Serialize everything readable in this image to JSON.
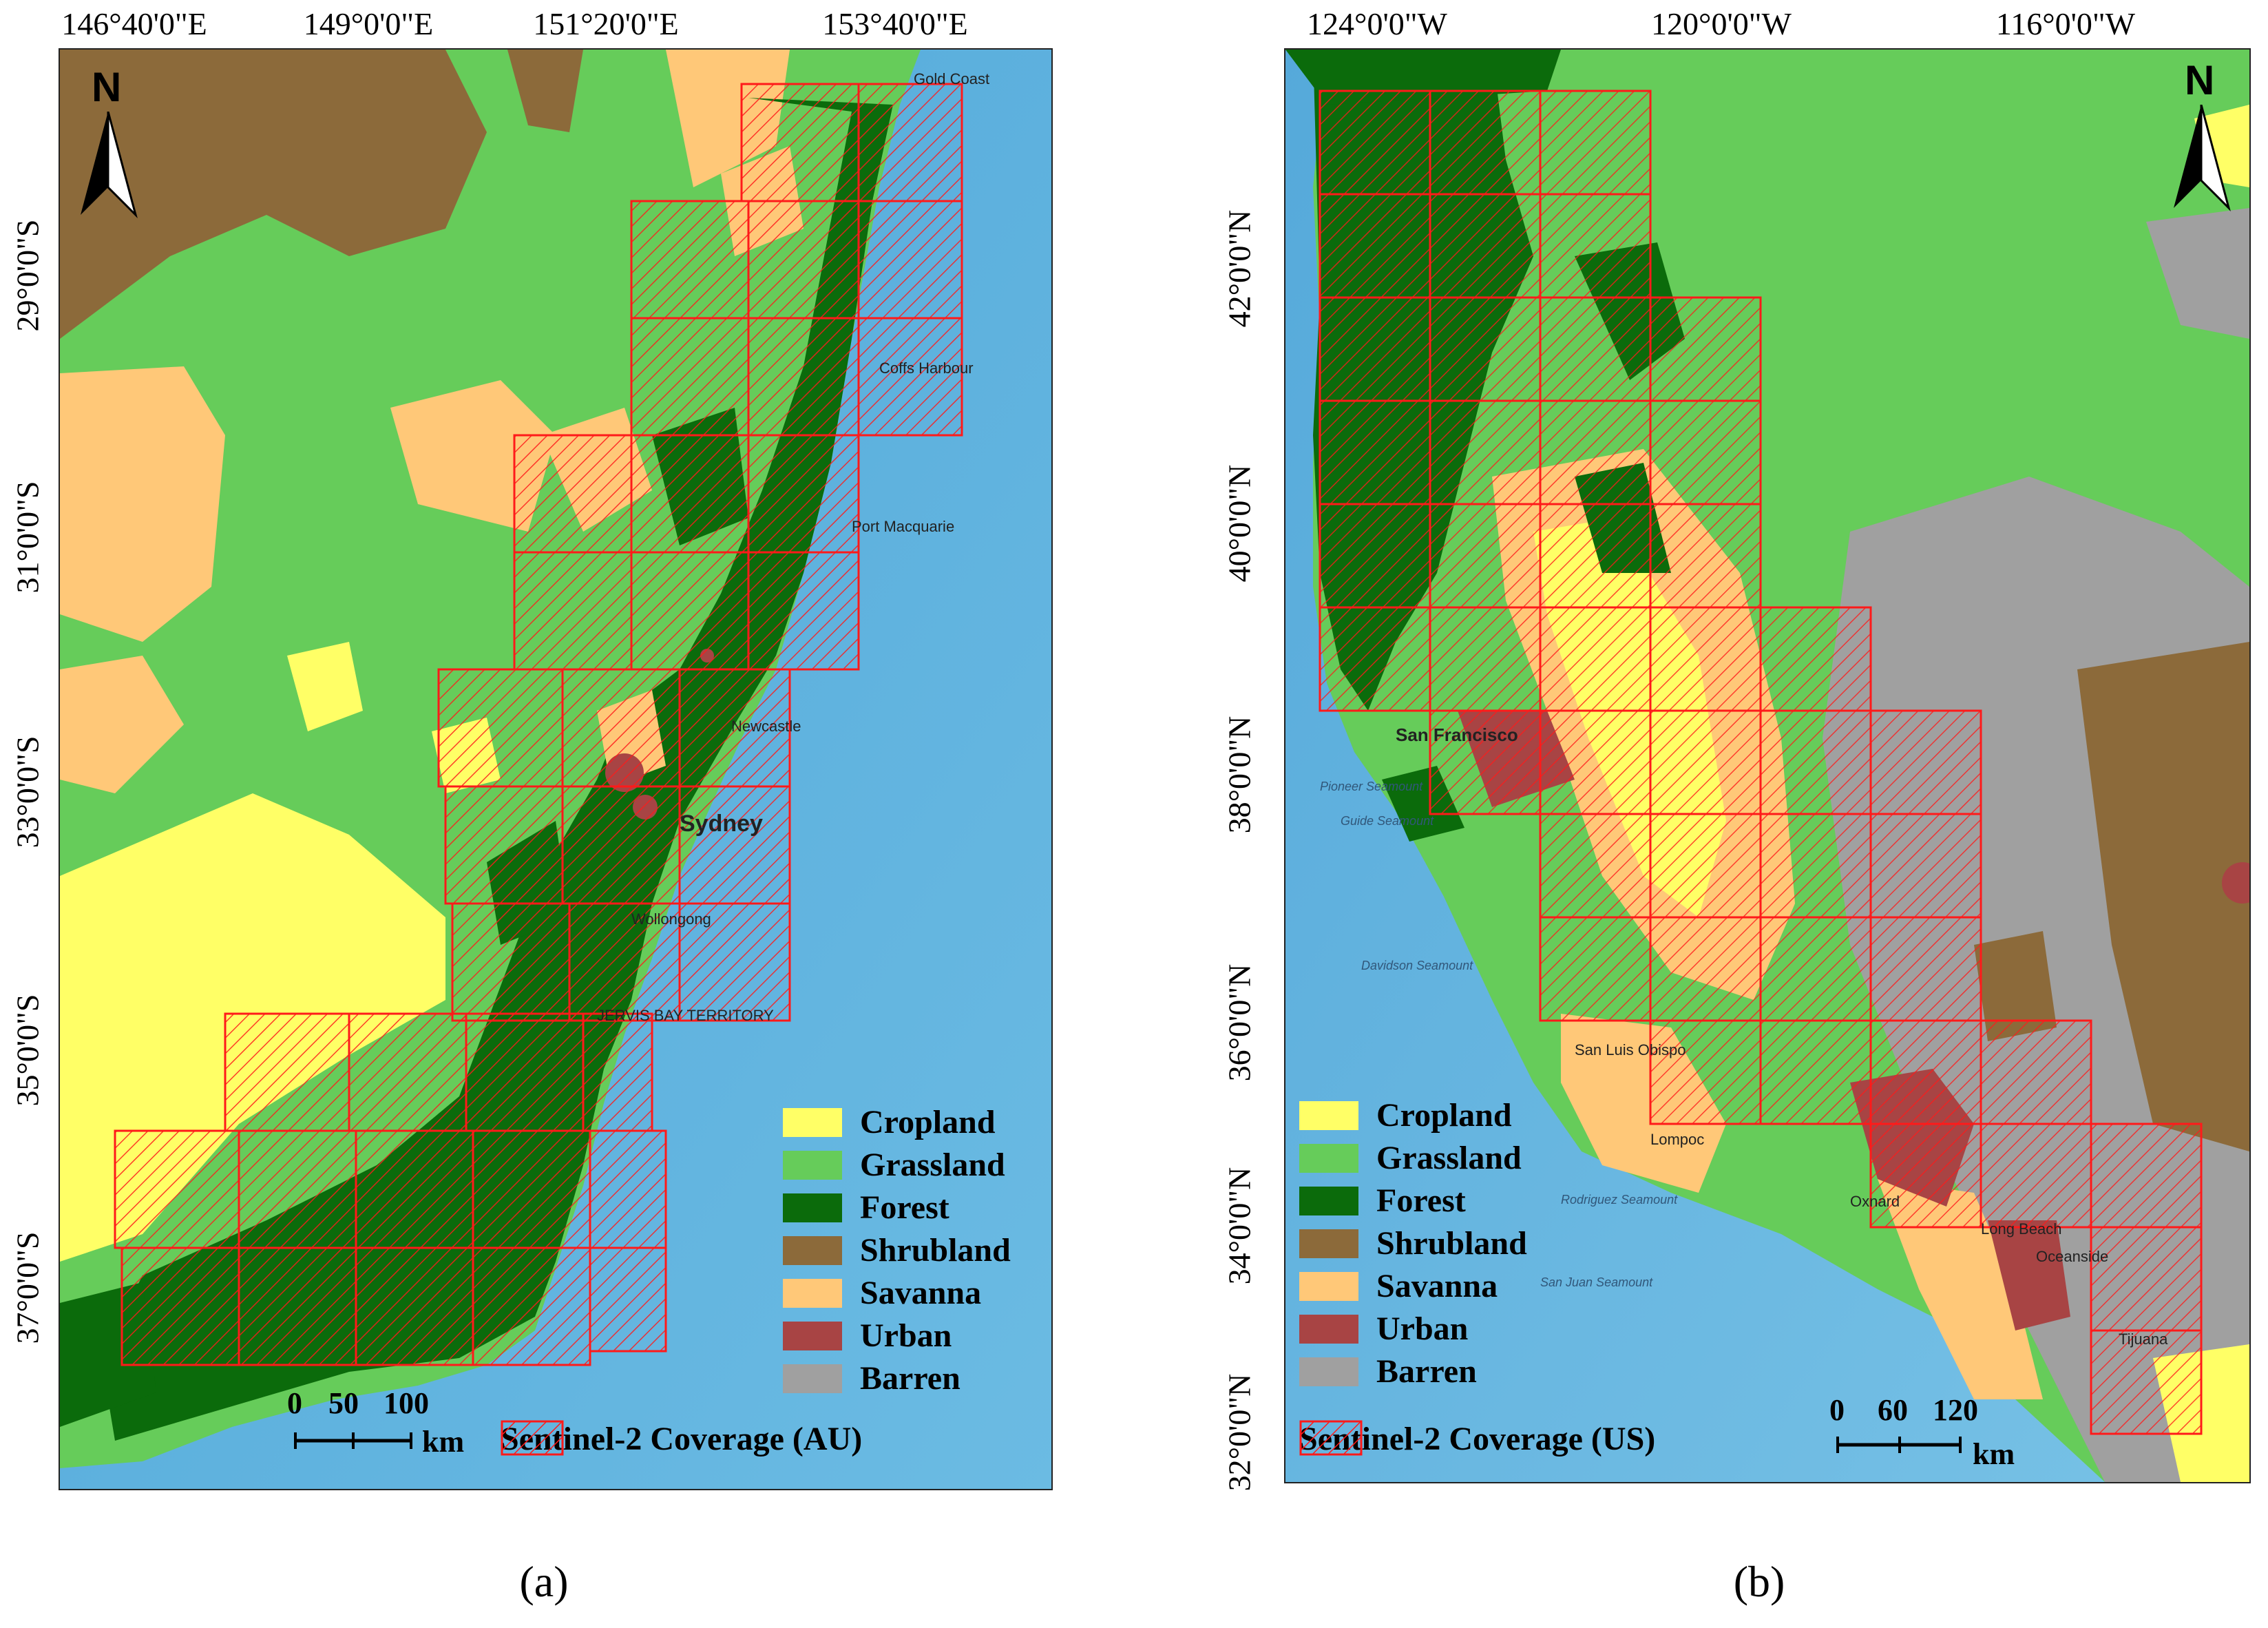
{
  "panel_a": {
    "caption": "(a)",
    "lon_labels": [
      "146°40'0\"E",
      "149°0'0\"E",
      "151°20'0\"E",
      "153°40'0\"E"
    ],
    "lat_labels": [
      "29°0'0\"S",
      "31°0'0\"S",
      "33°0'0\"S",
      "35°0'0\"S",
      "37°0'0\"S"
    ],
    "north_label": "N",
    "scale": {
      "ticks": [
        "0",
        "50",
        "100"
      ],
      "unit": "km"
    },
    "coverage_label": "Sentinel-2 Coverage (AU)",
    "places": {
      "gold_coast": "Gold Coast",
      "coffs_harbour": "Coffs Harbour",
      "port_macquarie": "Port Macquarie",
      "newcastle": "Newcastle",
      "sydney": "Sydney",
      "wollongong": "Wollongong",
      "jervis_bay": "JERVIS BAY TERRITORY"
    }
  },
  "panel_b": {
    "caption": "(b)",
    "lon_labels": [
      "124°0'0\"W",
      "120°0'0\"W",
      "116°0'0\"W"
    ],
    "lat_labels": [
      "42°0'0\"N",
      "40°0'0\"N",
      "38°0'0\"N",
      "36°0'0\"N",
      "34°0'0\"N",
      "32°0'0\"N"
    ],
    "north_label": "N",
    "scale": {
      "ticks": [
        "0",
        "60",
        "120"
      ],
      "unit": "km"
    },
    "coverage_label": "Sentinel-2 Coverage (US)",
    "places": {
      "san_francisco": "San Francisco",
      "pioneer": "Pioneer Seamount",
      "guide": "Guide Seamount",
      "davidson": "Davidson Seamount",
      "rodriguez": "Rodriguez Seamount",
      "san_juan": "San Juan Seamount",
      "oceanside": "Oceanside",
      "oxnard": "Oxnard",
      "long_beach": "Long Beach",
      "tijuana": "Tijuana",
      "san_luis_obispo": "San Luis Obispo",
      "lompoc": "Lompoc"
    }
  },
  "legend": {
    "items": [
      {
        "label": "Cropland",
        "color": "#ffff66"
      },
      {
        "label": "Grassland",
        "color": "#66cc5a"
      },
      {
        "label": "Forest",
        "color": "#0b6b0b"
      },
      {
        "label": "Shrubland",
        "color": "#8c6a3a"
      },
      {
        "label": "Savanna",
        "color": "#ffc878"
      },
      {
        "label": "Urban",
        "color": "#a84444"
      },
      {
        "label": "Barren",
        "color": "#a0a0a0"
      }
    ]
  },
  "colors": {
    "ocean": "#5fb2de",
    "coverage_stroke": "#ff1a1a"
  }
}
